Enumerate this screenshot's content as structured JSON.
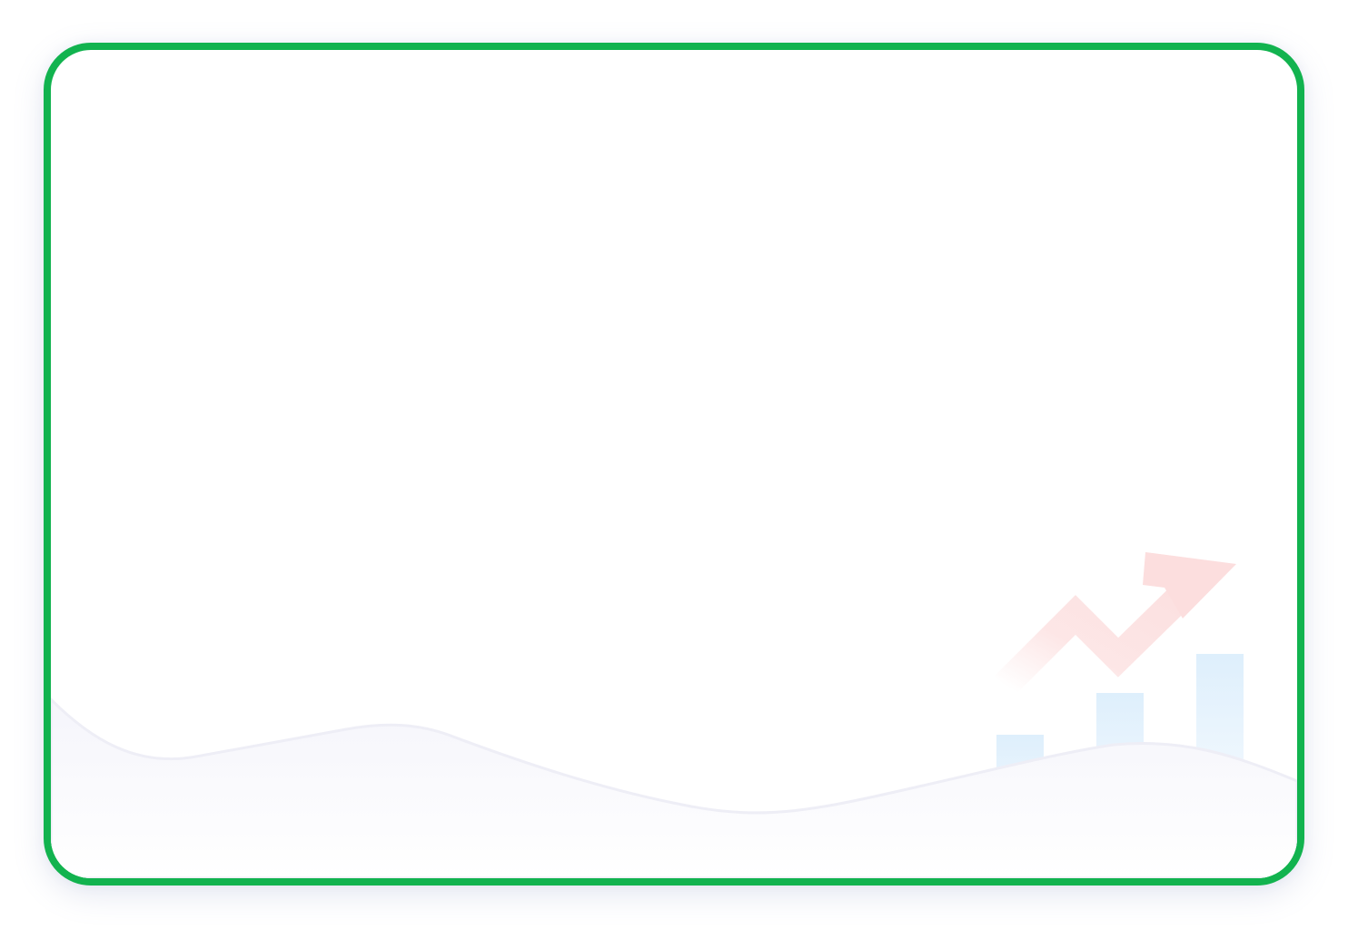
{
  "frame": {
    "border_color": "#12b34f",
    "background_color": "#ffffff"
  },
  "decoration": {
    "wave_fill_color": "#f6f6fb",
    "wave_stroke_color": "#eeeef6",
    "bar_color": "#dceefc",
    "arrow_color": "#fcdede",
    "icons": [
      "bar-chart-icon",
      "trend-up-arrow-icon"
    ]
  }
}
